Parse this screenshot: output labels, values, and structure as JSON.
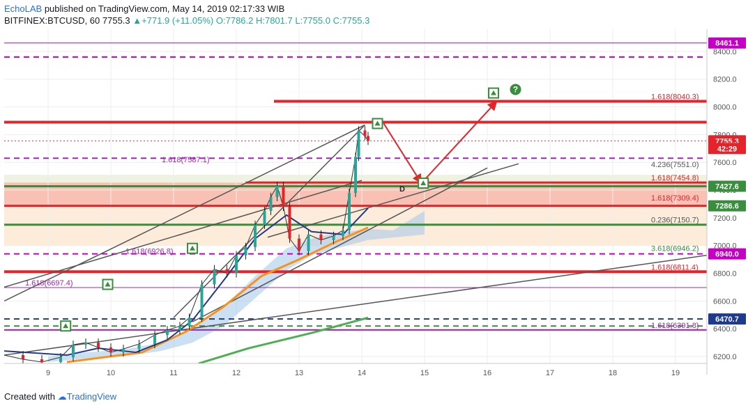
{
  "header": {
    "brand": "EchoLAB",
    "published": " published on TradingView.com, May 14, 2019 02:17:33 WIB",
    "symbol": "BITFINEX:BTCUSD, 60",
    "last": "7755.3",
    "change": "+771.9 (+11.05%)",
    "ohlc": "O:7786.2 H:7801.7 L:7755.0 C:7755.3"
  },
  "footer": {
    "created": "Created with",
    "logo": "TradingView"
  },
  "colors": {
    "red": "#e4242a",
    "purple": "#9c27b0",
    "magenta": "#c400c4",
    "green": "#388e3c",
    "orange": "#f7931a",
    "teal": "#26a69a"
  },
  "chart_data": {
    "type": "line",
    "title": "",
    "xlim": [
      8.3,
      19.5
    ],
    "ylim": [
      6150,
      8560
    ],
    "x_ticks": [
      9,
      10,
      11,
      12,
      13,
      14,
      15,
      16,
      17,
      18,
      19
    ],
    "x_tick_labels": [
      "9",
      "10",
      "11",
      "12",
      "13",
      "14",
      "15",
      "16",
      "17",
      "18",
      "19"
    ],
    "y_ticks": [
      "6200.0",
      "6400.0",
      "6600.0",
      "6800.0",
      "7000.0",
      "7200.0",
      "7400.0",
      "7600.0",
      "7800.0",
      "8000.0",
      "8200.0",
      "8400.0"
    ],
    "price_tags": [
      {
        "label": "8461.1",
        "value": 8461.1,
        "color": "#c400c4"
      },
      {
        "label": "7755.3",
        "value": 7755.3,
        "color": "#e4242a"
      },
      {
        "label": "42:29",
        "value": 7700,
        "color": "#e4242a"
      },
      {
        "label": "7427.6",
        "value": 7427.6,
        "color": "#388e3c"
      },
      {
        "label": "7286.6",
        "value": 7286.6,
        "color": "#388e3c"
      },
      {
        "label": "6940.0",
        "value": 6940.0,
        "color": "#c400c4"
      },
      {
        "label": "6470.7",
        "value": 6470.7,
        "color": "#1e3a8a"
      }
    ],
    "fib_labels": [
      {
        "text": "1.618(8040.3)",
        "value": 8040.3,
        "color": "#e4242a"
      },
      {
        "text": "1.618(7587.1)",
        "value": 7587.1,
        "color": "#9c27b0"
      },
      {
        "text": "4.236(7551.0)",
        "value": 7551.0,
        "color": "#555555"
      },
      {
        "text": "1.618(7454.8)",
        "value": 7454.8,
        "color": "#e4242a"
      },
      {
        "text": "1.618(7309.4)",
        "value": 7309.4,
        "color": "#e4242a"
      },
      {
        "text": "0.236(7150.7)",
        "value": 7150.7,
        "color": "#555555"
      },
      {
        "text": "3.618(6946.2)",
        "value": 6946.2,
        "color": "#388e3c"
      },
      {
        "text": "1.618(6926.8)",
        "value": 6926.8,
        "color": "#9c27b0"
      },
      {
        "text": "1.618(6811.4)",
        "value": 6811.4,
        "color": "#e4242a"
      },
      {
        "text": "1.618(6697.4)",
        "value": 6697.4,
        "color": "#9c27b0"
      },
      {
        "text": "1.618(6391.8)",
        "value": 6391.8,
        "color": "#9c27b0"
      }
    ],
    "annotations": [
      {
        "text": "D",
        "x": 14.6,
        "y": 7390
      },
      {
        "text": "?",
        "x": 16.45,
        "y": 8126
      }
    ],
    "levels": [
      {
        "y": 8461.1,
        "style": "solid",
        "color": "#c400c4",
        "width": 1
      },
      {
        "y": 8360,
        "style": "dashed",
        "color": "#c400c4",
        "width": 2
      },
      {
        "y": 8040.3,
        "style": "solid",
        "color": "#e4242a",
        "width": 4,
        "x0": 12.6
      },
      {
        "y": 7890,
        "style": "solid",
        "color": "#e4242a",
        "width": 4
      },
      {
        "y": 7630,
        "style": "dashed",
        "color": "#9c27b0",
        "width": 2
      },
      {
        "y": 7454.8,
        "style": "solid",
        "color": "#e4242a",
        "width": 3,
        "x0": 12.15
      },
      {
        "y": 7427.6,
        "style": "solid",
        "color": "#388e3c",
        "width": 3
      },
      {
        "y": 7286.6,
        "style": "solid",
        "color": "#e4242a",
        "width": 3
      },
      {
        "y": 7150.7,
        "style": "solid",
        "color": "#388e3c",
        "width": 3
      },
      {
        "y": 6940.0,
        "style": "dashed",
        "color": "#c400c4",
        "width": 2
      },
      {
        "y": 6811.4,
        "style": "solid",
        "color": "#e4242a",
        "width": 4
      },
      {
        "y": 6697.4,
        "style": "solid",
        "color": "#9c27b0",
        "width": 1
      },
      {
        "y": 6470.7,
        "style": "dashed",
        "color": "#1e3a8a",
        "width": 2
      },
      {
        "y": 6420,
        "style": "dashed",
        "color": "#388e3c",
        "width": 2
      },
      {
        "y": 6391.8,
        "style": "solid",
        "color": "#9c27b0",
        "width": 2
      }
    ],
    "zones": [
      {
        "y0": 7286.6,
        "y1": 7454.8,
        "color": "#f4a08a",
        "opacity": 0.65
      },
      {
        "y0": 7000,
        "y1": 7286.6,
        "color": "#fde2c7",
        "opacity": 0.65
      },
      {
        "y0": 7454.8,
        "y1": 7510,
        "color": "#e8f0d8",
        "opacity": 0.8
      }
    ],
    "price_series": [
      [
        8.3,
        6210
      ],
      [
        8.6,
        6180
      ],
      [
        8.9,
        6160
      ],
      [
        9.2,
        6195
      ],
      [
        9.4,
        6285
      ],
      [
        9.6,
        6300
      ],
      [
        9.8,
        6265
      ],
      [
        10.0,
        6230
      ],
      [
        10.2,
        6255
      ],
      [
        10.45,
        6290
      ],
      [
        10.7,
        6355
      ],
      [
        10.9,
        6390
      ],
      [
        11.1,
        6420
      ],
      [
        11.25,
        6480
      ],
      [
        11.45,
        6720
      ],
      [
        11.65,
        6830
      ],
      [
        11.85,
        6800
      ],
      [
        12.0,
        6930
      ],
      [
        12.15,
        6990
      ],
      [
        12.3,
        7150
      ],
      [
        12.45,
        7250
      ],
      [
        12.55,
        7350
      ],
      [
        12.65,
        7430
      ],
      [
        12.75,
        7280
      ],
      [
        12.85,
        7050
      ],
      [
        13.0,
        6960
      ],
      [
        13.15,
        7080
      ],
      [
        13.35,
        7040
      ],
      [
        13.55,
        7070
      ],
      [
        13.7,
        7110
      ],
      [
        13.8,
        7380
      ],
      [
        13.9,
        7640
      ],
      [
        13.95,
        7830
      ],
      [
        14.05,
        7790
      ],
      [
        14.1,
        7755.3
      ]
    ],
    "ma_orange": [
      [
        9.3,
        6160
      ],
      [
        10.5,
        6230
      ],
      [
        11.2,
        6380
      ],
      [
        11.8,
        6560
      ],
      [
        12.4,
        6780
      ],
      [
        13.0,
        6900
      ],
      [
        13.6,
        7030
      ],
      [
        14.1,
        7130
      ]
    ],
    "ma_green": [
      [
        11.4,
        6150
      ],
      [
        12.2,
        6260
      ],
      [
        13.2,
        6370
      ],
      [
        14.1,
        6480
      ]
    ],
    "ma_blue": [
      [
        8.3,
        6240
      ],
      [
        9.3,
        6210
      ],
      [
        9.8,
        6260
      ],
      [
        10.4,
        6230
      ],
      [
        10.9,
        6320
      ],
      [
        11.3,
        6460
      ],
      [
        11.8,
        6750
      ],
      [
        12.3,
        7050
      ],
      [
        12.8,
        7220
      ],
      [
        13.2,
        7100
      ],
      [
        13.7,
        7080
      ],
      [
        14.1,
        7270
      ]
    ],
    "trendlines": [
      {
        "points": [
          [
            8.3,
            6600
          ],
          [
            14.05,
            7870
          ]
        ],
        "color": "#555555"
      },
      {
        "points": [
          [
            11.0,
            6480
          ],
          [
            14.05,
            7870
          ]
        ],
        "color": "#555555"
      },
      {
        "points": [
          [
            11.3,
            6450
          ],
          [
            16.0,
            7560
          ]
        ],
        "color": "#555555"
      },
      {
        "points": [
          [
            12.5,
            7060
          ],
          [
            16.5,
            7590
          ]
        ],
        "color": "#555555"
      },
      {
        "points": [
          [
            8.3,
            6210
          ],
          [
            19.5,
            6930
          ]
        ],
        "color": "#555555"
      },
      {
        "points": [
          [
            8.3,
            6700
          ],
          [
            14.0,
            7470
          ]
        ],
        "color": "#555555"
      }
    ],
    "arrows": [
      {
        "points": [
          [
            14.35,
            7880
          ],
          [
            14.95,
            7450
          ]
        ],
        "color": "#e4242a"
      },
      {
        "points": [
          [
            14.95,
            7450
          ],
          [
            16.15,
            8040
          ]
        ],
        "color": "#e4242a"
      }
    ],
    "markers": [
      {
        "x": 9.28,
        "y": 6420
      },
      {
        "x": 9.95,
        "y": 6720
      },
      {
        "x": 11.3,
        "y": 6980
      },
      {
        "x": 14.25,
        "y": 7880
      },
      {
        "x": 14.98,
        "y": 7450
      },
      {
        "x": 16.1,
        "y": 8100
      }
    ],
    "grid": true,
    "legend": "none"
  }
}
